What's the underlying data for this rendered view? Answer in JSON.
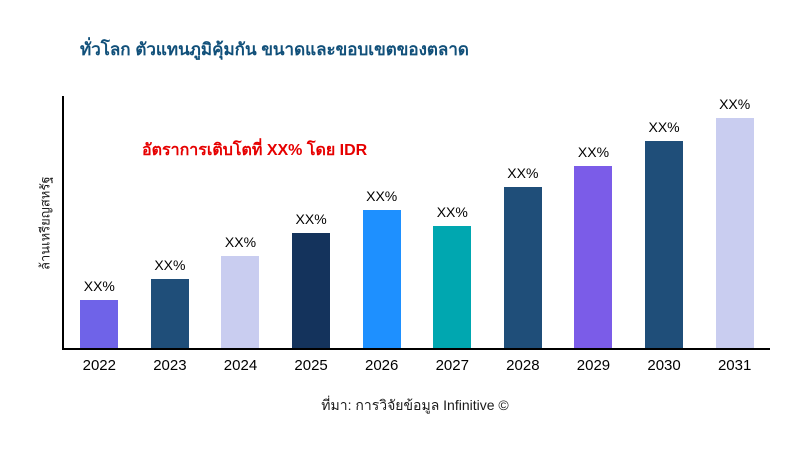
{
  "chart_data": {
    "type": "bar",
    "title": "ทั่วโลก ตัวแทนภูมิคุ้มกัน ขนาดและขอบเขตของตลาด",
    "title_color": "#11507a",
    "ylabel": "ล้านเหรียญสหรัฐ",
    "xlabel": "",
    "categories": [
      "2022",
      "2023",
      "2024",
      "2025",
      "2026",
      "2027",
      "2028",
      "2029",
      "2030",
      "2031"
    ],
    "values": [
      21,
      30,
      40,
      50,
      60,
      53,
      70,
      79,
      90,
      100
    ],
    "bar_labels": [
      "XX%",
      "XX%",
      "XX%",
      "XX%",
      "XX%",
      "XX%",
      "XX%",
      "XX%",
      "XX%",
      "XX%"
    ],
    "colors": [
      "#6f63e8",
      "#1f4e79",
      "#c9cdf0",
      "#14335c",
      "#1e90ff",
      "#00a7b0",
      "#1f4e79",
      "#7b5ce8",
      "#1f4e79",
      "#c9cdf0"
    ],
    "annotation": "อัตราการเติบโตที่ XX% โดย IDR",
    "annotation_color": "#e60000",
    "source": "ที่มา: การวิจัยข้อมูล Infinitive ©",
    "grid": false,
    "legend": "none"
  }
}
